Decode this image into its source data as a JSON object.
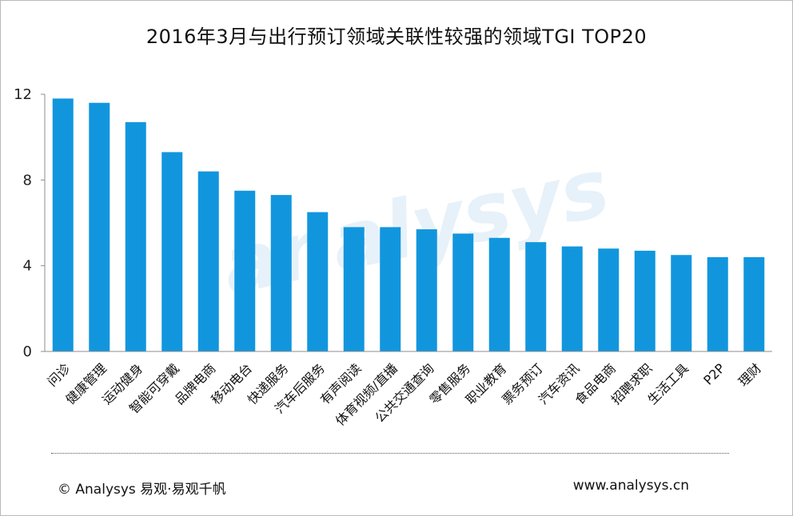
{
  "chart_data": {
    "type": "bar",
    "title": "2016年3月与出行预订领域关联性较强的领域TGI TOP20",
    "categories": [
      "问诊",
      "健康管理",
      "运动健身",
      "智能可穿戴",
      "品牌电商",
      "移动电台",
      "快递服务",
      "汽车后服务",
      "有声阅读",
      "体育视频/直播",
      "公共交通查询",
      "零售服务",
      "职业教育",
      "票务预订",
      "汽车资讯",
      "食品电商",
      "招聘求职",
      "生活工具",
      "P2P",
      "理财"
    ],
    "values": [
      11.8,
      11.6,
      10.7,
      9.3,
      8.4,
      7.5,
      7.3,
      6.5,
      5.8,
      5.8,
      5.7,
      5.5,
      5.3,
      5.1,
      4.9,
      4.8,
      4.7,
      4.5,
      4.4,
      4.4
    ],
    "yticks": [
      0,
      4,
      8,
      12
    ],
    "ylim": [
      0,
      12
    ],
    "bar_color": "#1196de",
    "grid": false,
    "legend": "none"
  },
  "watermark": "analysys",
  "footer": {
    "left": "© Analysys 易观·易观千帆",
    "right": "www.analysys.cn"
  }
}
